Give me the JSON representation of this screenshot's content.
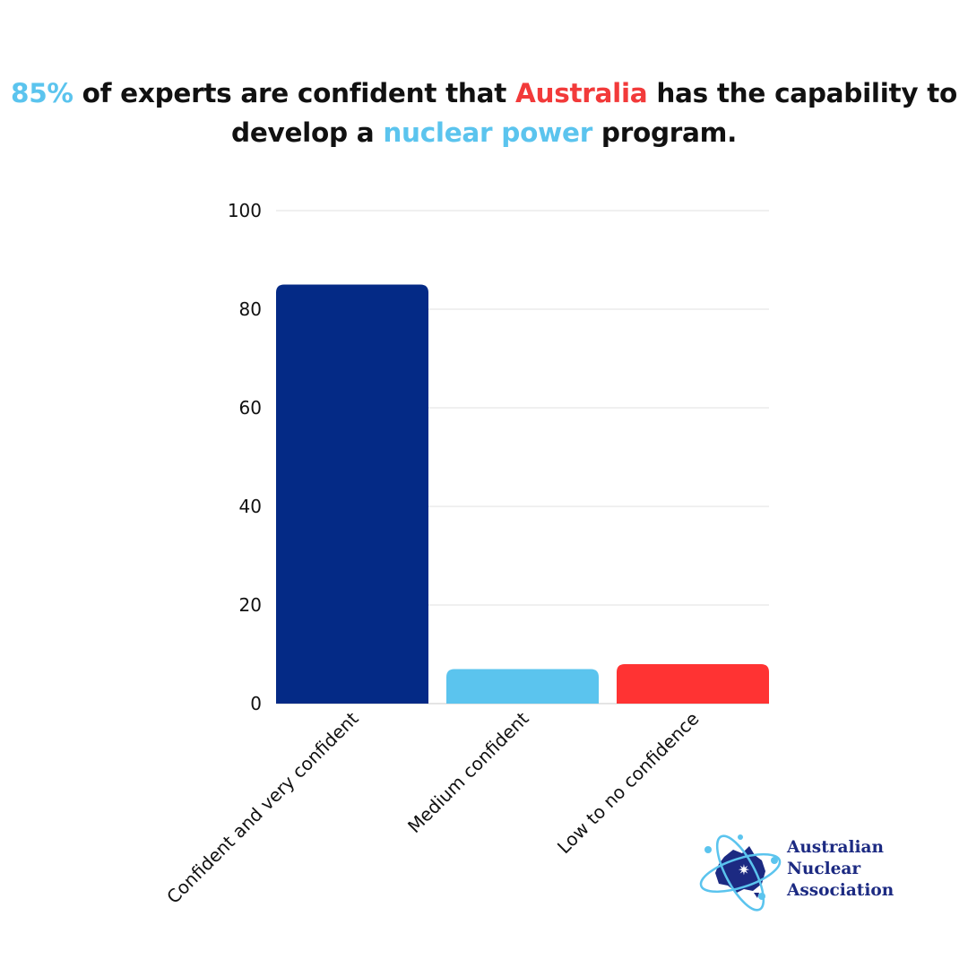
{
  "headline": {
    "part1": "85%",
    "part2": " of experts are confident that ",
    "part3": "Australia",
    "part4": " has the capability to develop a ",
    "part5": "nuclear power",
    "part6": " program."
  },
  "colors": {
    "navy": "#042a86",
    "light_blue": "#5bc4ee",
    "red": "#ff3333",
    "text": "#111111",
    "grid": "#e2e2e2",
    "logo_text": "#1c2a82"
  },
  "chart_data": {
    "type": "bar",
    "title": "",
    "xlabel": "",
    "ylabel": "",
    "categories": [
      "Confident and very confident",
      "Medium confident",
      "Low to no confidence"
    ],
    "values": [
      85,
      7,
      8
    ],
    "bar_colors": [
      "#042a86",
      "#5bc4ee",
      "#ff3333"
    ],
    "ylim": [
      0,
      100
    ],
    "yticks": [
      0,
      20,
      40,
      60,
      80,
      100
    ],
    "grid": true,
    "legend": "none"
  },
  "logo": {
    "line1": "Australian",
    "line2": "Nuclear",
    "line3": "Association",
    "icon": "atom-australia-map-icon"
  }
}
